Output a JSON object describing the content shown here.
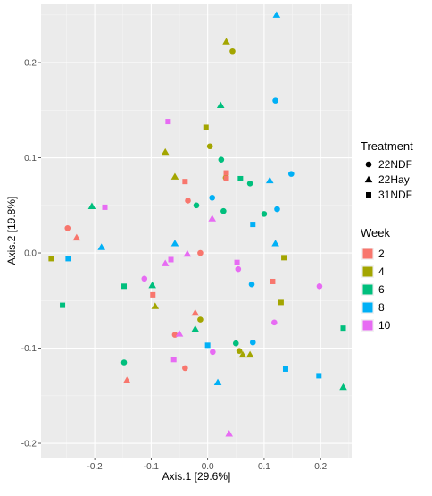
{
  "chart_data": {
    "type": "scatter",
    "xlabel": "Axis.1  [29.6%]",
    "ylabel": "Axis.2  [19.8%]",
    "xlim": [
      -0.295,
      0.255
    ],
    "ylim": [
      -0.215,
      0.262
    ],
    "x_ticks": [
      -0.2,
      -0.1,
      0.0,
      0.1,
      0.2
    ],
    "x_tick_labels": [
      "-0.2",
      "-0.1",
      "0.0",
      "0.1",
      "0.2"
    ],
    "y_ticks": [
      -0.2,
      -0.1,
      0.0,
      0.1,
      0.2
    ],
    "y_tick_labels": [
      "-0.2",
      "-0.1",
      "0.0",
      "0.1",
      "0.2"
    ],
    "grid": true,
    "legend_placement": "right",
    "legends": {
      "treatment": {
        "title": "Treatment",
        "items": [
          {
            "label": "22NDF",
            "shape": "circle"
          },
          {
            "label": "22Hay",
            "shape": "triangle"
          },
          {
            "label": "31NDF",
            "shape": "square"
          }
        ]
      },
      "week": {
        "title": "Week",
        "items": [
          {
            "label": "2",
            "color": "#F8766D"
          },
          {
            "label": "4",
            "color": "#A3A500"
          },
          {
            "label": "6",
            "color": "#00BF7D"
          },
          {
            "label": "8",
            "color": "#00B0F6"
          },
          {
            "label": "10",
            "color": "#E76BF3"
          }
        ]
      }
    },
    "points": [
      {
        "x": 0.044,
        "y": 0.212,
        "treatment": "22NDF",
        "week": "4"
      },
      {
        "x": 0.004,
        "y": 0.112,
        "treatment": "22NDF",
        "week": "4"
      },
      {
        "x": 0.032,
        "y": 0.079,
        "treatment": "22NDF",
        "week": "4"
      },
      {
        "x": -0.013,
        "y": -0.07,
        "treatment": "22NDF",
        "week": "4"
      },
      {
        "x": 0.056,
        "y": -0.103,
        "treatment": "22NDF",
        "week": "4"
      },
      {
        "x": 0.12,
        "y": 0.16,
        "treatment": "22NDF",
        "week": "8"
      },
      {
        "x": 0.148,
        "y": 0.083,
        "treatment": "22NDF",
        "week": "8"
      },
      {
        "x": 0.123,
        "y": 0.046,
        "treatment": "22NDF",
        "week": "8"
      },
      {
        "x": 0.008,
        "y": 0.058,
        "treatment": "22NDF",
        "week": "8"
      },
      {
        "x": 0.078,
        "y": -0.033,
        "treatment": "22NDF",
        "week": "8"
      },
      {
        "x": 0.08,
        "y": -0.094,
        "treatment": "22NDF",
        "week": "8"
      },
      {
        "x": 0.024,
        "y": 0.098,
        "treatment": "22NDF",
        "week": "6"
      },
      {
        "x": 0.075,
        "y": 0.073,
        "treatment": "22NDF",
        "week": "6"
      },
      {
        "x": -0.02,
        "y": 0.05,
        "treatment": "22NDF",
        "week": "6"
      },
      {
        "x": 0.028,
        "y": 0.044,
        "treatment": "22NDF",
        "week": "6"
      },
      {
        "x": 0.1,
        "y": 0.041,
        "treatment": "22NDF",
        "week": "6"
      },
      {
        "x": 0.05,
        "y": -0.095,
        "treatment": "22NDF",
        "week": "6"
      },
      {
        "x": -0.148,
        "y": -0.115,
        "treatment": "22NDF",
        "week": "6"
      },
      {
        "x": -0.248,
        "y": 0.026,
        "treatment": "22NDF",
        "week": "2"
      },
      {
        "x": -0.035,
        "y": 0.055,
        "treatment": "22NDF",
        "week": "2"
      },
      {
        "x": -0.013,
        "y": 0.0,
        "treatment": "22NDF",
        "week": "2"
      },
      {
        "x": -0.058,
        "y": -0.086,
        "treatment": "22NDF",
        "week": "2"
      },
      {
        "x": -0.04,
        "y": -0.121,
        "treatment": "22NDF",
        "week": "2"
      },
      {
        "x": -0.112,
        "y": -0.027,
        "treatment": "22NDF",
        "week": "10"
      },
      {
        "x": 0.054,
        "y": -0.017,
        "treatment": "22NDF",
        "week": "10"
      },
      {
        "x": 0.198,
        "y": -0.035,
        "treatment": "22NDF",
        "week": "10"
      },
      {
        "x": 0.118,
        "y": -0.073,
        "treatment": "22NDF",
        "week": "10"
      },
      {
        "x": 0.009,
        "y": -0.104,
        "treatment": "22NDF",
        "week": "10"
      },
      {
        "x": 0.033,
        "y": 0.222,
        "treatment": "22Hay",
        "week": "4"
      },
      {
        "x": -0.075,
        "y": 0.106,
        "treatment": "22Hay",
        "week": "4"
      },
      {
        "x": -0.058,
        "y": 0.08,
        "treatment": "22Hay",
        "week": "4"
      },
      {
        "x": -0.093,
        "y": -0.056,
        "treatment": "22Hay",
        "week": "4"
      },
      {
        "x": 0.062,
        "y": -0.107,
        "treatment": "22Hay",
        "week": "4"
      },
      {
        "x": 0.075,
        "y": -0.107,
        "treatment": "22Hay",
        "week": "4"
      },
      {
        "x": 0.122,
        "y": 0.25,
        "treatment": "22Hay",
        "week": "8"
      },
      {
        "x": 0.11,
        "y": 0.076,
        "treatment": "22Hay",
        "week": "8"
      },
      {
        "x": 0.12,
        "y": 0.01,
        "treatment": "22Hay",
        "week": "8"
      },
      {
        "x": -0.058,
        "y": 0.01,
        "treatment": "22Hay",
        "week": "8"
      },
      {
        "x": -0.188,
        "y": 0.006,
        "treatment": "22Hay",
        "week": "8"
      },
      {
        "x": 0.018,
        "y": -0.136,
        "treatment": "22Hay",
        "week": "8"
      },
      {
        "x": 0.023,
        "y": 0.155,
        "treatment": "22Hay",
        "week": "6"
      },
      {
        "x": -0.205,
        "y": 0.049,
        "treatment": "22Hay",
        "week": "6"
      },
      {
        "x": -0.098,
        "y": -0.034,
        "treatment": "22Hay",
        "week": "6"
      },
      {
        "x": -0.022,
        "y": -0.08,
        "treatment": "22Hay",
        "week": "6"
      },
      {
        "x": 0.24,
        "y": -0.141,
        "treatment": "22Hay",
        "week": "6"
      },
      {
        "x": -0.232,
        "y": 0.016,
        "treatment": "22Hay",
        "week": "2"
      },
      {
        "x": -0.022,
        "y": -0.063,
        "treatment": "22Hay",
        "week": "2"
      },
      {
        "x": -0.143,
        "y": -0.134,
        "treatment": "22Hay",
        "week": "2"
      },
      {
        "x": 0.008,
        "y": 0.036,
        "treatment": "22Hay",
        "week": "10"
      },
      {
        "x": -0.075,
        "y": -0.011,
        "treatment": "22Hay",
        "week": "10"
      },
      {
        "x": -0.036,
        "y": -0.001,
        "treatment": "22Hay",
        "week": "10"
      },
      {
        "x": -0.05,
        "y": -0.085,
        "treatment": "22Hay",
        "week": "10"
      },
      {
        "x": 0.038,
        "y": -0.19,
        "treatment": "22Hay",
        "week": "10"
      },
      {
        "x": -0.003,
        "y": 0.132,
        "treatment": "31NDF",
        "week": "4"
      },
      {
        "x": 0.135,
        "y": -0.005,
        "treatment": "31NDF",
        "week": "4"
      },
      {
        "x": 0.13,
        "y": -0.052,
        "treatment": "31NDF",
        "week": "4"
      },
      {
        "x": -0.277,
        "y": -0.006,
        "treatment": "31NDF",
        "week": "4"
      },
      {
        "x": 0.058,
        "y": 0.078,
        "treatment": "31NDF",
        "week": "6"
      },
      {
        "x": -0.148,
        "y": -0.035,
        "treatment": "31NDF",
        "week": "6"
      },
      {
        "x": -0.257,
        "y": -0.055,
        "treatment": "31NDF",
        "week": "6"
      },
      {
        "x": 0.24,
        "y": -0.079,
        "treatment": "31NDF",
        "week": "6"
      },
      {
        "x": 0.08,
        "y": 0.03,
        "treatment": "31NDF",
        "week": "8"
      },
      {
        "x": -0.247,
        "y": -0.006,
        "treatment": "31NDF",
        "week": "8"
      },
      {
        "x": 0.0,
        "y": -0.097,
        "treatment": "31NDF",
        "week": "8"
      },
      {
        "x": 0.138,
        "y": -0.122,
        "treatment": "31NDF",
        "week": "8"
      },
      {
        "x": 0.197,
        "y": -0.129,
        "treatment": "31NDF",
        "week": "8"
      },
      {
        "x": 0.033,
        "y": 0.084,
        "treatment": "31NDF",
        "week": "2"
      },
      {
        "x": 0.033,
        "y": 0.078,
        "treatment": "31NDF",
        "week": "2"
      },
      {
        "x": -0.04,
        "y": 0.075,
        "treatment": "31NDF",
        "week": "2"
      },
      {
        "x": -0.097,
        "y": -0.044,
        "treatment": "31NDF",
        "week": "2"
      },
      {
        "x": 0.115,
        "y": -0.03,
        "treatment": "31NDF",
        "week": "2"
      },
      {
        "x": -0.07,
        "y": 0.138,
        "treatment": "31NDF",
        "week": "10"
      },
      {
        "x": -0.182,
        "y": 0.048,
        "treatment": "31NDF",
        "week": "10"
      },
      {
        "x": -0.065,
        "y": -0.007,
        "treatment": "31NDF",
        "week": "10"
      },
      {
        "x": 0.052,
        "y": -0.01,
        "treatment": "31NDF",
        "week": "10"
      },
      {
        "x": -0.06,
        "y": -0.112,
        "treatment": "31NDF",
        "week": "10"
      }
    ]
  }
}
